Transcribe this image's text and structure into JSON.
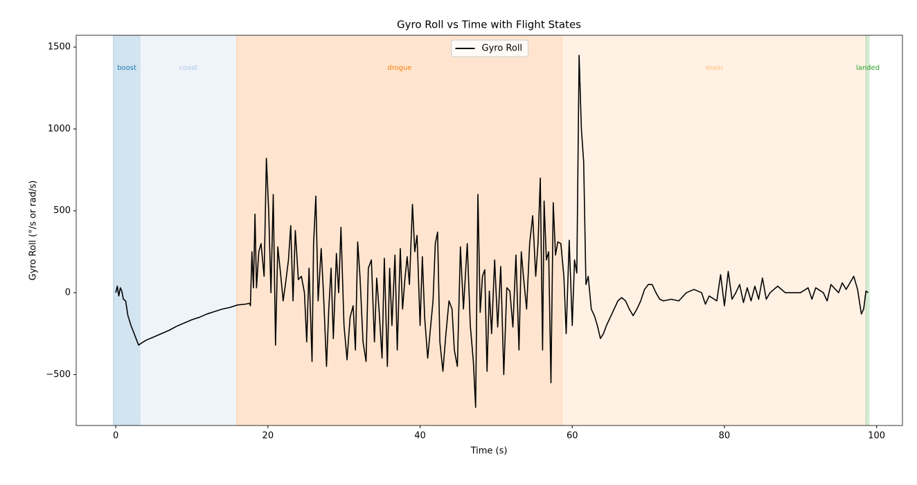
{
  "chart_data": {
    "type": "line",
    "title": "Gyro Roll vs Time with Flight States",
    "x_label": "Time (s)",
    "y_label": "Gyro Roll (°/s or rad/s)",
    "xlim": [
      -5.2,
      103.4
    ],
    "ylim": [
      -811,
      1572
    ],
    "xticks": [
      0,
      20,
      40,
      60,
      80,
      100
    ],
    "yticks": [
      {
        "value": -500,
        "label": "−500"
      },
      0,
      500,
      1000,
      1500
    ],
    "legend": "upper center",
    "regions": [
      {
        "name": "boost",
        "start": -0.3,
        "end": 3.2,
        "color": "#1f77b4"
      },
      {
        "name": "coast",
        "start": 3.2,
        "end": 15.9,
        "color": "#aec7e8"
      },
      {
        "name": "drogue",
        "start": 15.9,
        "end": 58.7,
        "color": "#ff7f0e"
      },
      {
        "name": "main",
        "start": 58.7,
        "end": 98.6,
        "color": "#ffbb78"
      },
      {
        "name": "landed",
        "start": 98.6,
        "end": 99.1,
        "color": "#2ca02c"
      }
    ],
    "x": [
      0,
      0.2,
      0.4,
      0.6,
      0.8,
      1,
      1.3,
      1.6,
      2,
      2.5,
      3,
      3.3,
      4,
      5,
      6,
      7,
      8,
      9,
      10,
      11,
      12,
      13,
      14,
      15,
      16,
      17,
      17.6,
      17.7,
      17.9,
      18.1,
      18.3,
      18.5,
      18.8,
      19.1,
      19.5,
      19.8,
      20.1,
      20.4,
      20.7,
      21,
      21.3,
      21.7,
      22,
      22.3,
      22.7,
      23,
      23.3,
      23.6,
      24,
      24.4,
      24.8,
      25.1,
      25.4,
      25.8,
      26,
      26.3,
      26.6,
      27,
      27.3,
      27.7,
      28,
      28.3,
      28.6,
      29,
      29.3,
      29.6,
      30,
      30.4,
      30.8,
      31.2,
      31.5,
      31.8,
      32.1,
      32.5,
      32.9,
      33.2,
      33.6,
      34,
      34.3,
      34.6,
      35,
      35.3,
      35.7,
      36,
      36.3,
      36.7,
      37,
      37.4,
      37.7,
      38,
      38.3,
      38.6,
      39,
      39.3,
      39.6,
      40,
      40.3,
      40.6,
      41,
      41.3,
      41.7,
      42,
      42.3,
      42.6,
      43,
      43.4,
      43.8,
      44.2,
      44.5,
      44.9,
      45.3,
      45.7,
      46.2,
      46.6,
      47,
      47.3,
      47.6,
      47.9,
      48.2,
      48.5,
      48.8,
      49.1,
      49.4,
      49.8,
      50.2,
      50.6,
      51,
      51.4,
      51.8,
      52.2,
      52.6,
      53,
      53.3,
      53.6,
      54,
      54.4,
      54.8,
      55.2,
      55.5,
      55.8,
      56.1,
      56.3,
      56.6,
      56.9,
      57.2,
      57.5,
      57.8,
      58.1,
      58.5,
      58.9,
      59.2,
      59.6,
      60,
      60.3,
      60.6,
      60.9,
      61.2,
      61.5,
      61.8,
      62.1,
      62.5,
      62.9,
      63.3,
      63.7,
      64.1,
      64.5,
      65,
      65.5,
      66,
      66.5,
      67,
      67.5,
      68,
      68.5,
      69,
      69.5,
      70,
      70.5,
      71,
      71.5,
      72,
      73,
      74,
      75,
      76,
      77,
      77.5,
      78,
      79,
      79.5,
      80,
      80.5,
      81,
      81.5,
      82,
      82.5,
      83,
      83.5,
      84,
      84.5,
      85,
      85.5,
      86,
      87,
      88,
      89,
      90,
      91,
      91.5,
      92,
      93,
      93.5,
      94,
      95,
      95.5,
      96,
      97,
      97.5,
      98,
      98.3,
      98.6,
      98.9
    ],
    "series": [
      {
        "name": "Gyro Roll",
        "color": "#000000",
        "values": [
          0,
          40,
          -20,
          30,
          10,
          -40,
          -50,
          -140,
          -200,
          -260,
          -320,
          -310,
          -290,
          -270,
          -250,
          -230,
          -205,
          -185,
          -165,
          -150,
          -130,
          -115,
          -100,
          -90,
          -75,
          -70,
          -65,
          -80,
          250,
          30,
          480,
          30,
          250,
          300,
          100,
          820,
          500,
          0,
          600,
          -320,
          280,
          100,
          -50,
          50,
          200,
          410,
          -50,
          380,
          80,
          100,
          0,
          -300,
          150,
          -420,
          300,
          590,
          -50,
          270,
          0,
          -450,
          -100,
          150,
          -280,
          240,
          0,
          400,
          -200,
          -410,
          -150,
          -80,
          -350,
          310,
          100,
          -300,
          -420,
          150,
          200,
          -300,
          90,
          -100,
          -400,
          210,
          -450,
          150,
          -200,
          230,
          -350,
          270,
          -100,
          80,
          220,
          50,
          540,
          250,
          350,
          -200,
          220,
          -150,
          -400,
          -250,
          -50,
          300,
          370,
          -300,
          -480,
          -250,
          -50,
          -100,
          -350,
          -450,
          280,
          -100,
          300,
          -200,
          -420,
          -700,
          600,
          -120,
          100,
          140,
          -480,
          10,
          -250,
          200,
          -210,
          160,
          -500,
          30,
          10,
          -210,
          230,
          -350,
          250,
          90,
          -100,
          300,
          470,
          100,
          300,
          700,
          -350,
          560,
          200,
          250,
          -550,
          550,
          230,
          310,
          300,
          100,
          -250,
          320,
          -200,
          200,
          120,
          1450,
          1000,
          800,
          50,
          100,
          -100,
          -140,
          -200,
          -280,
          -250,
          -200,
          -150,
          -100,
          -50,
          -30,
          -50,
          -100,
          -140,
          -100,
          -50,
          20,
          50,
          50,
          0,
          -40,
          -50,
          -40,
          -50,
          0,
          20,
          0,
          -70,
          -20,
          -50,
          110,
          -80,
          130,
          -40,
          0,
          50,
          -60,
          30,
          -50,
          40,
          -40,
          90,
          -40,
          0,
          40,
          0,
          0,
          0,
          30,
          -40,
          30,
          0,
          -50,
          50,
          0,
          60,
          20,
          100,
          20,
          -130,
          -100,
          10,
          0
        ]
      }
    ]
  }
}
